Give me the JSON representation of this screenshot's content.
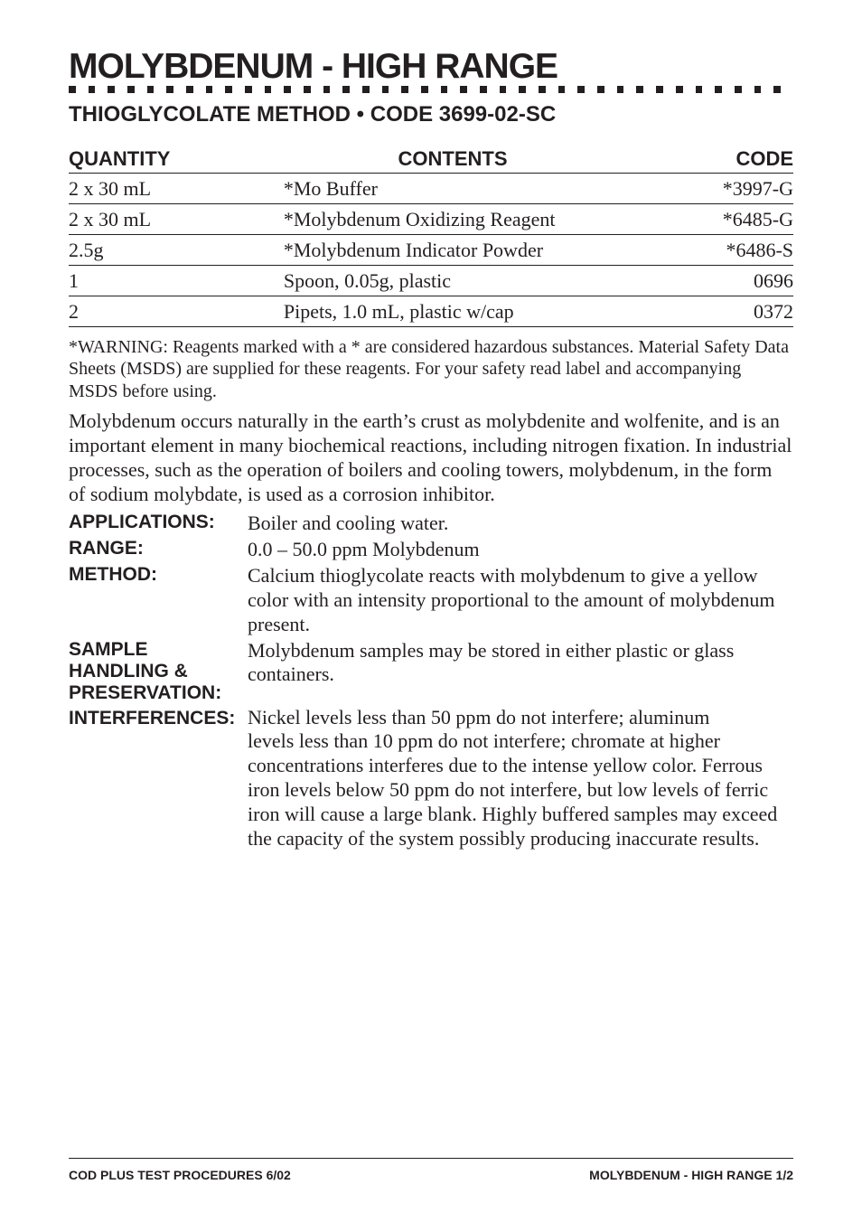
{
  "title": {
    "text": "MOLYBDENUM - HIGH RANGE",
    "fontsize": 39,
    "color": "#231f20"
  },
  "dotted_rule": {
    "square_size": 8,
    "gap": 14,
    "count": 37,
    "color": "#231f20"
  },
  "subtitle": {
    "text": "THIOGLYCOLATE METHOD • CODE 3699-02-SC",
    "fontsize": 24
  },
  "table": {
    "header_fontsize": 22,
    "cell_fontsize": 22,
    "columns": [
      "QUANTITY",
      "CONTENTS",
      "CODE"
    ],
    "rows": [
      [
        "2 x 30 mL",
        "*Mo Buffer",
        "*3997-G"
      ],
      [
        "2 x 30 mL",
        "*Molybdenum Oxidizing Reagent",
        "*6485-G"
      ],
      [
        "2.5g",
        "*Molybdenum Indicator Powder",
        "*6486-S"
      ],
      [
        "1",
        "Spoon, 0.05g, plastic",
        "0696"
      ],
      [
        "2",
        "Pipets, 1.0 mL, plastic w/cap",
        "0372"
      ]
    ]
  },
  "warning": {
    "text": "*WARNING: Reagents marked with a * are considered hazardous substances. Material Safety Data Sheets (MSDS) are supplied for these reagents. For your safety read label and accompanying MSDS before using.",
    "fontsize": 20
  },
  "intro_para": {
    "text": "Molybdenum occurs naturally in the earth’s crust as molybdenite and wolfenite, and is an important element in many biochemical reactions, including nitrogen fixation. In industrial processes, such as the operation of boilers and cooling towers, molybdenum, in the form of sodium molybdate, is used as a corrosion inhibitor.",
    "fontsize": 22
  },
  "definitions": {
    "label_fontsize": 21,
    "value_fontsize": 22,
    "items": [
      {
        "label": "APPLICATIONS:",
        "value": "Boiler and cooling water."
      },
      {
        "label": "RANGE:",
        "value": "0.0 – 50.0 ppm Molybdenum"
      },
      {
        "label": "METHOD:",
        "value": "Calcium thioglycolate reacts with molybdenum to give a yellow color with an intensity proportional to the amount of molybdenum present."
      },
      {
        "label": "SAMPLE HANDLING & PRESERVATION:",
        "value": "Molybdenum samples may be stored in either plastic or glass containers."
      }
    ],
    "interferences": {
      "label": "INTERFERENCES:",
      "first_line": "Nickel levels less than 50 ppm do not interfere; aluminum",
      "rest": "levels less than 10 ppm do not interfere; chromate at higher concentrations interferes due to the intense yellow color. Ferrous iron levels below 50 ppm do not interfere, but low levels of ferric iron will cause a large blank. Highly buffered samples may exceed the capacity of the system possibly producing inaccurate results."
    }
  },
  "footer": {
    "left": "COD PLUS TEST PROCEDURES  6/02",
    "right": "MOLYBDENUM - HIGH RANGE  1/2",
    "fontsize": 14
  },
  "colors": {
    "text": "#231f20",
    "background": "#ffffff",
    "rule": "#231f20"
  }
}
